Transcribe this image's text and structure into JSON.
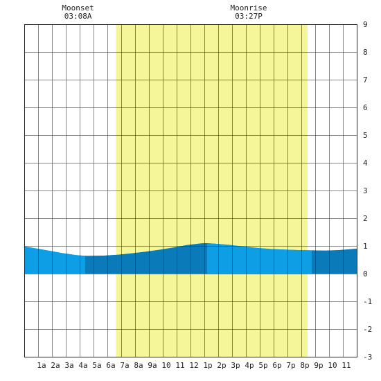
{
  "chart_data": {
    "type": "area",
    "x_tick_labels": [
      "1a",
      "2a",
      "3a",
      "4a",
      "5a",
      "6a",
      "7a",
      "8a",
      "9a",
      "10",
      "11",
      "12",
      "1p",
      "2p",
      "3p",
      "4p",
      "5p",
      "6p",
      "7p",
      "8p",
      "9p",
      "10",
      "11"
    ],
    "x_range_hours": [
      -0.75,
      23.25
    ],
    "ylim": [
      -3,
      9
    ],
    "y_ticks": [
      -3,
      -2,
      -1,
      0,
      1,
      2,
      3,
      4,
      5,
      6,
      7,
      8,
      9
    ],
    "grid": true,
    "daylight": {
      "start_hour": 5.87,
      "end_hour": 19.7
    },
    "moon_events": [
      {
        "label": "Moonset",
        "time": "03:08A",
        "hour": 3.13
      },
      {
        "label": "Moonrise",
        "time": "03:27P",
        "hour": 15.45
      }
    ],
    "tide_curve": {
      "hours": [
        -0.75,
        0,
        1,
        2,
        3,
        3.65,
        5,
        6,
        7,
        8,
        9,
        10,
        11,
        12,
        12.45,
        13,
        14,
        15,
        16,
        17,
        18,
        19,
        20,
        21,
        22,
        23.25
      ],
      "heights": [
        0.98,
        0.92,
        0.83,
        0.74,
        0.67,
        0.64,
        0.65,
        0.68,
        0.73,
        0.79,
        0.86,
        0.94,
        1.03,
        1.09,
        1.1,
        1.08,
        1.04,
        0.98,
        0.93,
        0.89,
        0.87,
        0.85,
        0.84,
        0.83,
        0.85,
        0.9
      ]
    },
    "shade_band_hours": [
      [
        -0.75,
        3.65
      ],
      [
        12.45,
        20.0
      ]
    ],
    "colors": {
      "daylight": "#f5f59a",
      "tide_light": "#0d9ee6",
      "tide_dark": "#0a7ab8",
      "grid": "#222222",
      "background": "#ffffff"
    }
  }
}
